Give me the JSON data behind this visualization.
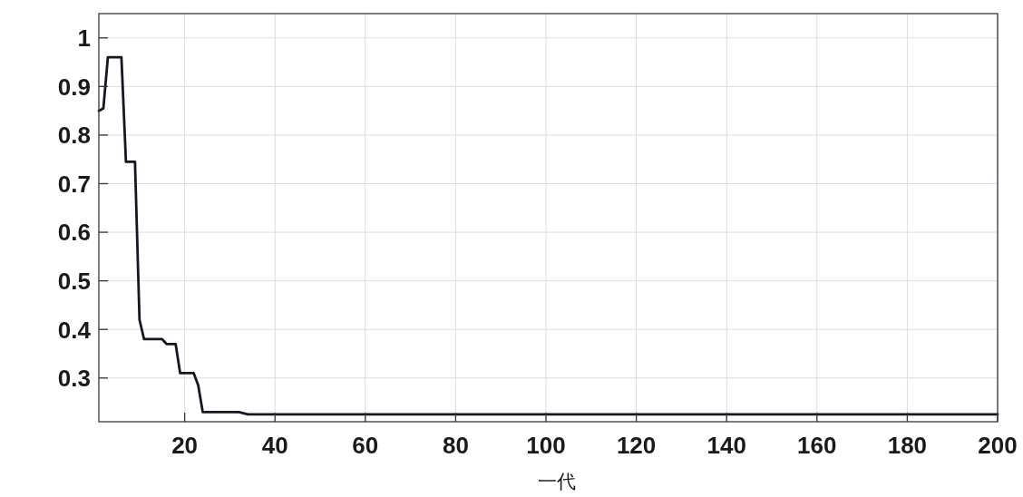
{
  "chart_data": {
    "type": "line",
    "xlabel": "一代",
    "x": [
      1,
      2,
      3,
      6,
      7,
      9,
      10,
      11,
      15,
      16,
      18,
      19,
      22,
      23,
      24,
      32,
      34,
      200
    ],
    "values": [
      0.85,
      0.855,
      0.96,
      0.96,
      0.745,
      0.745,
      0.42,
      0.38,
      0.38,
      0.37,
      0.37,
      0.31,
      0.31,
      0.285,
      0.23,
      0.23,
      0.225,
      0.225
    ],
    "color": "#1c1424",
    "xlim": [
      1,
      200
    ],
    "ylim": [
      0.21,
      1.05
    ],
    "xticks": [
      20,
      40,
      60,
      80,
      100,
      120,
      140,
      160,
      180,
      200
    ],
    "yticks": [
      0.3,
      0.4,
      0.5,
      0.6,
      0.7,
      0.8,
      0.9,
      1
    ],
    "grid": true
  }
}
